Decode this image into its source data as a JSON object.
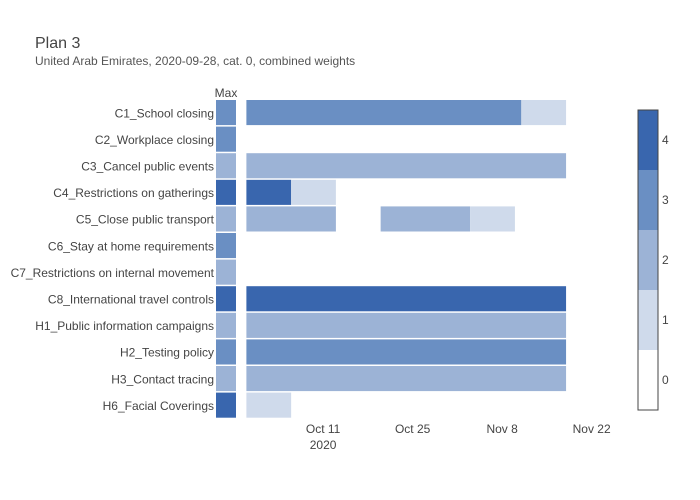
{
  "chart_data": {
    "type": "heatmap",
    "title": "Plan 3",
    "subtitle": "United Arab Emirates, 2020-09-28, cat. 0, combined weights",
    "max_column_label": "Max",
    "x_ticks": [
      {
        "label": "Oct 11",
        "date": "2020-10-11"
      },
      {
        "label": "Oct 25",
        "date": "2020-10-25"
      },
      {
        "label": "Nov 8",
        "date": "2020-11-08"
      },
      {
        "label": "Nov 22",
        "date": "2020-11-22"
      }
    ],
    "x_year_label": "2020",
    "x_range": [
      "2020-09-28",
      "2020-11-28"
    ],
    "colorscale": [
      {
        "level": 0,
        "color": "#ffffff"
      },
      {
        "level": 1,
        "color": "#cfdaeb"
      },
      {
        "level": 2,
        "color": "#9cb3d6"
      },
      {
        "level": 3,
        "color": "#6a8fc3"
      },
      {
        "level": 4,
        "color": "#3966ae"
      }
    ],
    "colorbar_ticks": [
      "0",
      "1",
      "2",
      "3",
      "4"
    ],
    "rows": [
      {
        "label": "C1_School closing",
        "max": 3,
        "segments": [
          {
            "start": "2020-09-29",
            "end": "2020-11-11",
            "level": 3
          },
          {
            "start": "2020-11-11",
            "end": "2020-11-18",
            "level": 1
          }
        ]
      },
      {
        "label": "C2_Workplace closing",
        "max": 3,
        "segments": []
      },
      {
        "label": "C3_Cancel public events",
        "max": 2,
        "segments": [
          {
            "start": "2020-09-29",
            "end": "2020-11-18",
            "level": 2
          }
        ]
      },
      {
        "label": "C4_Restrictions on gatherings",
        "max": 4,
        "segments": [
          {
            "start": "2020-09-29",
            "end": "2020-10-06",
            "level": 4
          },
          {
            "start": "2020-10-06",
            "end": "2020-10-13",
            "level": 1
          }
        ]
      },
      {
        "label": "C5_Close public transport",
        "max": 2,
        "segments": [
          {
            "start": "2020-09-29",
            "end": "2020-10-13",
            "level": 2
          },
          {
            "start": "2020-10-20",
            "end": "2020-11-03",
            "level": 2
          },
          {
            "start": "2020-11-03",
            "end": "2020-11-10",
            "level": 1
          }
        ]
      },
      {
        "label": "C6_Stay at home requirements",
        "max": 3,
        "segments": []
      },
      {
        "label": "C7_Restrictions on internal movement",
        "max": 2,
        "segments": []
      },
      {
        "label": "C8_International travel controls",
        "max": 4,
        "segments": [
          {
            "start": "2020-09-29",
            "end": "2020-11-18",
            "level": 4
          }
        ]
      },
      {
        "label": "H1_Public information campaigns",
        "max": 2,
        "segments": [
          {
            "start": "2020-09-29",
            "end": "2020-11-18",
            "level": 2
          }
        ]
      },
      {
        "label": "H2_Testing policy",
        "max": 3,
        "segments": [
          {
            "start": "2020-09-29",
            "end": "2020-11-18",
            "level": 3
          }
        ]
      },
      {
        "label": "H3_Contact tracing",
        "max": 2,
        "segments": [
          {
            "start": "2020-09-29",
            "end": "2020-11-18",
            "level": 2
          }
        ]
      },
      {
        "label": "H6_Facial Coverings",
        "max": 4,
        "segments": [
          {
            "start": "2020-09-29",
            "end": "2020-10-06",
            "level": 1
          }
        ]
      }
    ]
  }
}
